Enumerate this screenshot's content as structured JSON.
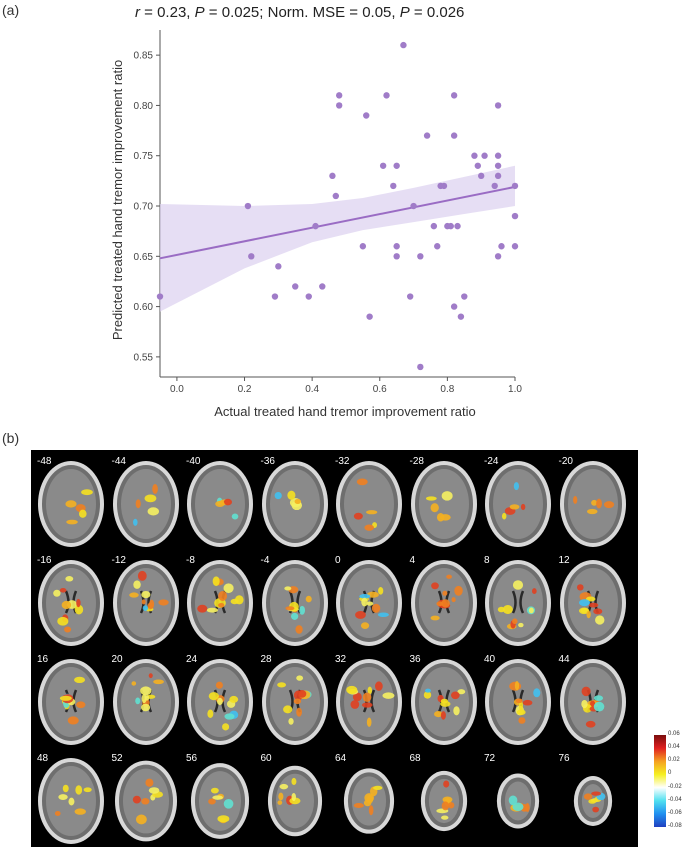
{
  "panel_a_label": "(a)",
  "panel_b_label": "(b)",
  "title": {
    "r_symbol": "r",
    "r_value": " = 0.23,  ",
    "p1_symbol": "P",
    "p1_value": " = 0.025; Norm. MSE = 0.05,  ",
    "p2_symbol": "P",
    "p2_value": " = 0.026"
  },
  "chart_data": {
    "type": "scatter",
    "title": "r = 0.23, P = 0.025; Norm. MSE = 0.05, P = 0.026",
    "xlabel": "Actual treated hand tremor improvement ratio",
    "ylabel": "Predicted treated hand tremor improvement ratio",
    "xlim": [
      -0.05,
      1.0
    ],
    "ylim": [
      0.53,
      0.875
    ],
    "xticks": [
      "0.0",
      "0.2",
      "0.4",
      "0.6",
      "0.8",
      "1.0"
    ],
    "yticks": [
      "0.55",
      "0.60",
      "0.65",
      "0.70",
      "0.75",
      "0.80",
      "0.85"
    ],
    "point_color": "#a07cc8",
    "line_color": "#9a6cc4",
    "band_color": "#dcd0ef",
    "points": [
      [
        -0.05,
        0.61
      ],
      [
        0.21,
        0.7
      ],
      [
        0.22,
        0.65
      ],
      [
        0.29,
        0.61
      ],
      [
        0.3,
        0.64
      ],
      [
        0.35,
        0.62
      ],
      [
        0.39,
        0.61
      ],
      [
        0.41,
        0.68
      ],
      [
        0.43,
        0.62
      ],
      [
        0.46,
        0.73
      ],
      [
        0.47,
        0.71
      ],
      [
        0.48,
        0.81
      ],
      [
        0.48,
        0.8
      ],
      [
        0.55,
        0.66
      ],
      [
        0.56,
        0.79
      ],
      [
        0.57,
        0.59
      ],
      [
        0.61,
        0.74
      ],
      [
        0.62,
        0.81
      ],
      [
        0.64,
        0.72
      ],
      [
        0.65,
        0.74
      ],
      [
        0.65,
        0.66
      ],
      [
        0.65,
        0.65
      ],
      [
        0.67,
        0.86
      ],
      [
        0.69,
        0.61
      ],
      [
        0.7,
        0.7
      ],
      [
        0.72,
        0.54
      ],
      [
        0.72,
        0.65
      ],
      [
        0.74,
        0.77
      ],
      [
        0.76,
        0.68
      ],
      [
        0.77,
        0.66
      ],
      [
        0.78,
        0.72
      ],
      [
        0.79,
        0.72
      ],
      [
        0.8,
        0.68
      ],
      [
        0.81,
        0.68
      ],
      [
        0.82,
        0.81
      ],
      [
        0.82,
        0.77
      ],
      [
        0.82,
        0.6
      ],
      [
        0.83,
        0.68
      ],
      [
        0.84,
        0.59
      ],
      [
        0.85,
        0.61
      ],
      [
        0.88,
        0.75
      ],
      [
        0.89,
        0.74
      ],
      [
        0.9,
        0.73
      ],
      [
        0.91,
        0.75
      ],
      [
        0.94,
        0.72
      ],
      [
        0.95,
        0.8
      ],
      [
        0.95,
        0.75
      ],
      [
        0.95,
        0.74
      ],
      [
        0.95,
        0.73
      ],
      [
        0.95,
        0.65
      ],
      [
        0.96,
        0.66
      ],
      [
        1.0,
        0.72
      ],
      [
        1.0,
        0.69
      ],
      [
        1.0,
        0.66
      ]
    ],
    "fit_line": [
      [
        -0.05,
        0.648
      ],
      [
        1.0,
        0.719
      ]
    ],
    "confidence_band": {
      "x": [
        -0.05,
        0.2,
        0.4,
        0.55,
        0.7,
        0.85,
        1.0
      ],
      "lower": [
        0.595,
        0.638,
        0.664,
        0.676,
        0.684,
        0.692,
        0.7
      ],
      "upper": [
        0.702,
        0.7,
        0.702,
        0.708,
        0.718,
        0.729,
        0.74
      ]
    }
  },
  "brain": {
    "slice_numbers": [
      "-48",
      "-44",
      "-40",
      "-36",
      "-32",
      "-28",
      "-24",
      "-20",
      "-16",
      "-12",
      "-8",
      "-4",
      "0",
      "4",
      "8",
      "12",
      "16",
      "20",
      "24",
      "28",
      "32",
      "36",
      "40",
      "44",
      "48",
      "52",
      "56",
      "60",
      "64",
      "68",
      "72",
      "76"
    ],
    "colorbar_ticks": [
      "0.06",
      "0.04",
      "0.02",
      "0",
      "-0.02",
      "-0.04",
      "-0.06",
      "-0.08"
    ],
    "colorbar_colors": [
      "#7a0d0d",
      "#e02020",
      "#f5a020",
      "#f5f020",
      "#ffffff",
      "#50e0f0",
      "#2090f0",
      "#2040c0"
    ]
  }
}
